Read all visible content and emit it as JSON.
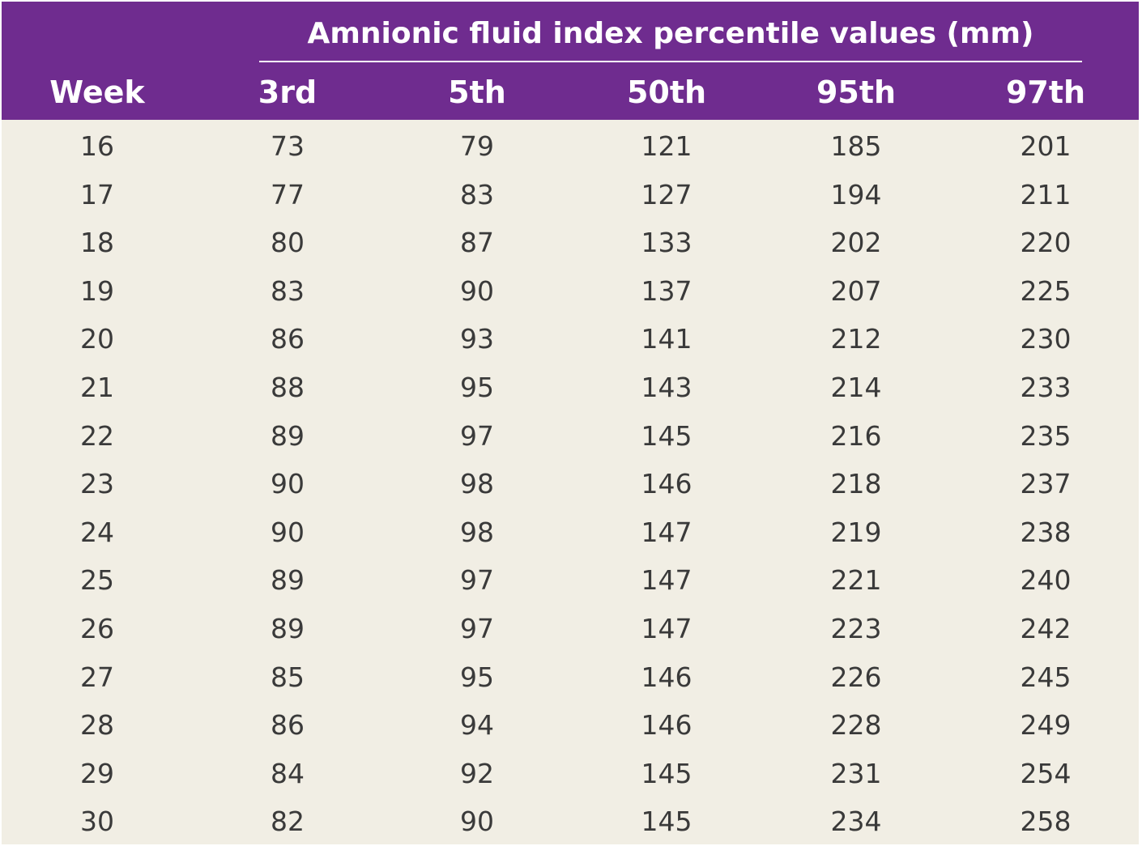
{
  "table": {
    "group_header": "Amnionic fluid index percentile values (mm)",
    "columns": [
      "Week",
      "3rd",
      "5th",
      "50th",
      "95th",
      "97th"
    ],
    "rows": [
      [
        "16",
        "73",
        "79",
        "121",
        "185",
        "201"
      ],
      [
        "17",
        "77",
        "83",
        "127",
        "194",
        "211"
      ],
      [
        "18",
        "80",
        "87",
        "133",
        "202",
        "220"
      ],
      [
        "19",
        "83",
        "90",
        "137",
        "207",
        "225"
      ],
      [
        "20",
        "86",
        "93",
        "141",
        "212",
        "230"
      ],
      [
        "21",
        "88",
        "95",
        "143",
        "214",
        "233"
      ],
      [
        "22",
        "89",
        "97",
        "145",
        "216",
        "235"
      ],
      [
        "23",
        "90",
        "98",
        "146",
        "218",
        "237"
      ],
      [
        "24",
        "90",
        "98",
        "147",
        "219",
        "238"
      ],
      [
        "25",
        "89",
        "97",
        "147",
        "221",
        "240"
      ],
      [
        "26",
        "89",
        "97",
        "147",
        "223",
        "242"
      ],
      [
        "27",
        "85",
        "95",
        "146",
        "226",
        "245"
      ],
      [
        "28",
        "86",
        "94",
        "146",
        "228",
        "249"
      ],
      [
        "29",
        "84",
        "92",
        "145",
        "231",
        "254"
      ],
      [
        "30",
        "82",
        "90",
        "145",
        "234",
        "258"
      ]
    ]
  },
  "colors": {
    "header_bg": "#6f2c8f",
    "body_bg": "#f1eee4",
    "header_text": "#ffffff",
    "body_text": "#3a3a3a"
  }
}
